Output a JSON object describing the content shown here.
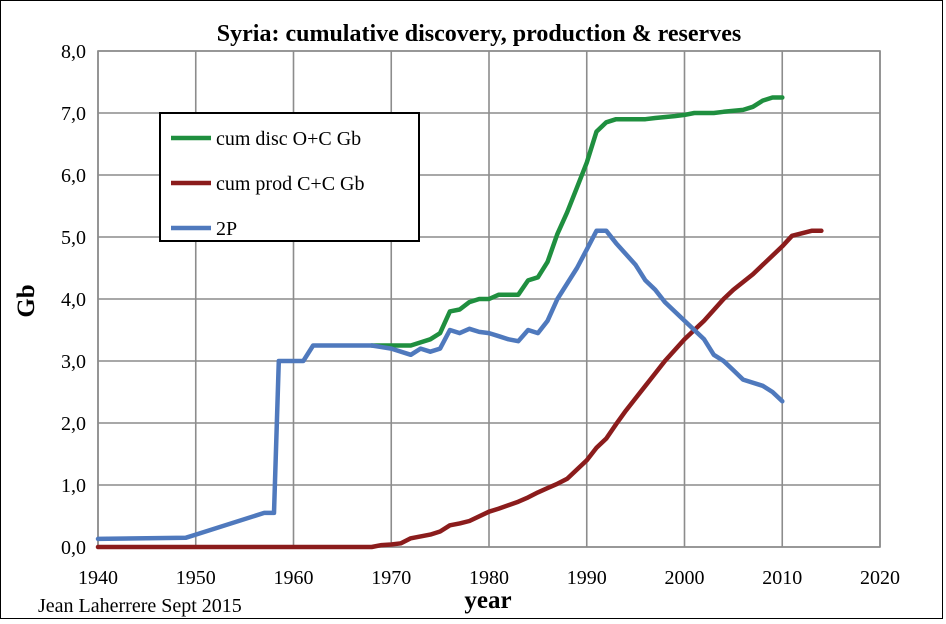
{
  "chart_data": {
    "type": "line",
    "title": "Syria: cumulative discovery, production &  reserves",
    "xlabel": "year",
    "ylabel": "Gb",
    "xlim": [
      1940,
      2020
    ],
    "ylim": [
      0,
      8
    ],
    "grid": true,
    "legend_position": "top-left",
    "x_ticks": [
      "1940",
      "1950",
      "1960",
      "1970",
      "1980",
      "1990",
      "2000",
      "2010",
      "2020"
    ],
    "y_ticks": [
      "0,0",
      "1,0",
      "2,0",
      "3,0",
      "4,0",
      "5,0",
      "6,0",
      "7,0",
      "8,0"
    ],
    "series": [
      {
        "name": "cum disc O+C Gb",
        "color": "#1f8f3f",
        "points": [
          [
            1968,
            3.25
          ],
          [
            1971,
            3.25
          ],
          [
            1972,
            3.25
          ],
          [
            1973,
            3.3
          ],
          [
            1974,
            3.35
          ],
          [
            1975,
            3.45
          ],
          [
            1976,
            3.8
          ],
          [
            1977,
            3.83
          ],
          [
            1978,
            3.95
          ],
          [
            1979,
            4.0
          ],
          [
            1980,
            4.0
          ],
          [
            1981,
            4.07
          ],
          [
            1982,
            4.07
          ],
          [
            1983,
            4.07
          ],
          [
            1984,
            4.3
          ],
          [
            1985,
            4.35
          ],
          [
            1986,
            4.6
          ],
          [
            1987,
            5.05
          ],
          [
            1988,
            5.4
          ],
          [
            1989,
            5.8
          ],
          [
            1990,
            6.2
          ],
          [
            1991,
            6.7
          ],
          [
            1992,
            6.85
          ],
          [
            1993,
            6.9
          ],
          [
            1995,
            6.9
          ],
          [
            1996,
            6.9
          ],
          [
            1997,
            6.92
          ],
          [
            1999,
            6.95
          ],
          [
            2000,
            6.97
          ],
          [
            2001,
            7.0
          ],
          [
            2003,
            7.0
          ],
          [
            2004,
            7.02
          ],
          [
            2006,
            7.05
          ],
          [
            2007,
            7.1
          ],
          [
            2008,
            7.2
          ],
          [
            2009,
            7.25
          ],
          [
            2010,
            7.25
          ]
        ]
      },
      {
        "name": "cum prod C+C Gb",
        "color": "#8b1c1c",
        "points": [
          [
            1940,
            0.0
          ],
          [
            1968,
            0.0
          ],
          [
            1969,
            0.03
          ],
          [
            1970,
            0.04
          ],
          [
            1971,
            0.06
          ],
          [
            1972,
            0.14
          ],
          [
            1974,
            0.2
          ],
          [
            1975,
            0.25
          ],
          [
            1976,
            0.35
          ],
          [
            1977,
            0.38
          ],
          [
            1978,
            0.42
          ],
          [
            1980,
            0.57
          ],
          [
            1981,
            0.62
          ],
          [
            1983,
            0.73
          ],
          [
            1984,
            0.8
          ],
          [
            1985,
            0.88
          ],
          [
            1986,
            0.95
          ],
          [
            1987,
            1.02
          ],
          [
            1988,
            1.1
          ],
          [
            1989,
            1.25
          ],
          [
            1990,
            1.4
          ],
          [
            1991,
            1.6
          ],
          [
            1992,
            1.75
          ],
          [
            1993,
            1.98
          ],
          [
            1994,
            2.2
          ],
          [
            1995,
            2.4
          ],
          [
            1996,
            2.6
          ],
          [
            1997,
            2.8
          ],
          [
            1998,
            3.0
          ],
          [
            2000,
            3.35
          ],
          [
            2002,
            3.65
          ],
          [
            2004,
            4.0
          ],
          [
            2005,
            4.15
          ],
          [
            2007,
            4.4
          ],
          [
            2008,
            4.55
          ],
          [
            2010,
            4.85
          ],
          [
            2011,
            5.02
          ],
          [
            2012,
            5.06
          ],
          [
            2013,
            5.1
          ],
          [
            2014,
            5.1
          ]
        ]
      },
      {
        "name": "2P",
        "color": "#4f79bd",
        "points": [
          [
            1940,
            0.13
          ],
          [
            1949,
            0.15
          ],
          [
            1950,
            0.2
          ],
          [
            1957,
            0.55
          ],
          [
            1958,
            0.55
          ],
          [
            1958.5,
            3.0
          ],
          [
            1961,
            3.0
          ],
          [
            1962,
            3.25
          ],
          [
            1968,
            3.25
          ],
          [
            1970,
            3.2
          ],
          [
            1972,
            3.1
          ],
          [
            1973,
            3.2
          ],
          [
            1974,
            3.15
          ],
          [
            1975,
            3.2
          ],
          [
            1976,
            3.5
          ],
          [
            1977,
            3.45
          ],
          [
            1978,
            3.52
          ],
          [
            1979,
            3.47
          ],
          [
            1980,
            3.45
          ],
          [
            1981,
            3.4
          ],
          [
            1982,
            3.35
          ],
          [
            1983,
            3.32
          ],
          [
            1984,
            3.5
          ],
          [
            1985,
            3.45
          ],
          [
            1986,
            3.65
          ],
          [
            1987,
            4.0
          ],
          [
            1988,
            4.25
          ],
          [
            1989,
            4.5
          ],
          [
            1990,
            4.8
          ],
          [
            1991,
            5.1
          ],
          [
            1992,
            5.1
          ],
          [
            1993,
            4.9
          ],
          [
            1995,
            4.55
          ],
          [
            1996,
            4.3
          ],
          [
            1997,
            4.15
          ],
          [
            1998,
            3.95
          ],
          [
            2000,
            3.65
          ],
          [
            2001,
            3.5
          ],
          [
            2002,
            3.35
          ],
          [
            2003,
            3.1
          ],
          [
            2004,
            3.0
          ],
          [
            2005,
            2.85
          ],
          [
            2006,
            2.7
          ],
          [
            2008,
            2.6
          ],
          [
            2009,
            2.5
          ],
          [
            2010,
            2.35
          ]
        ]
      }
    ]
  },
  "footer": {
    "credit": "Jean Laherrere Sept 2015"
  }
}
